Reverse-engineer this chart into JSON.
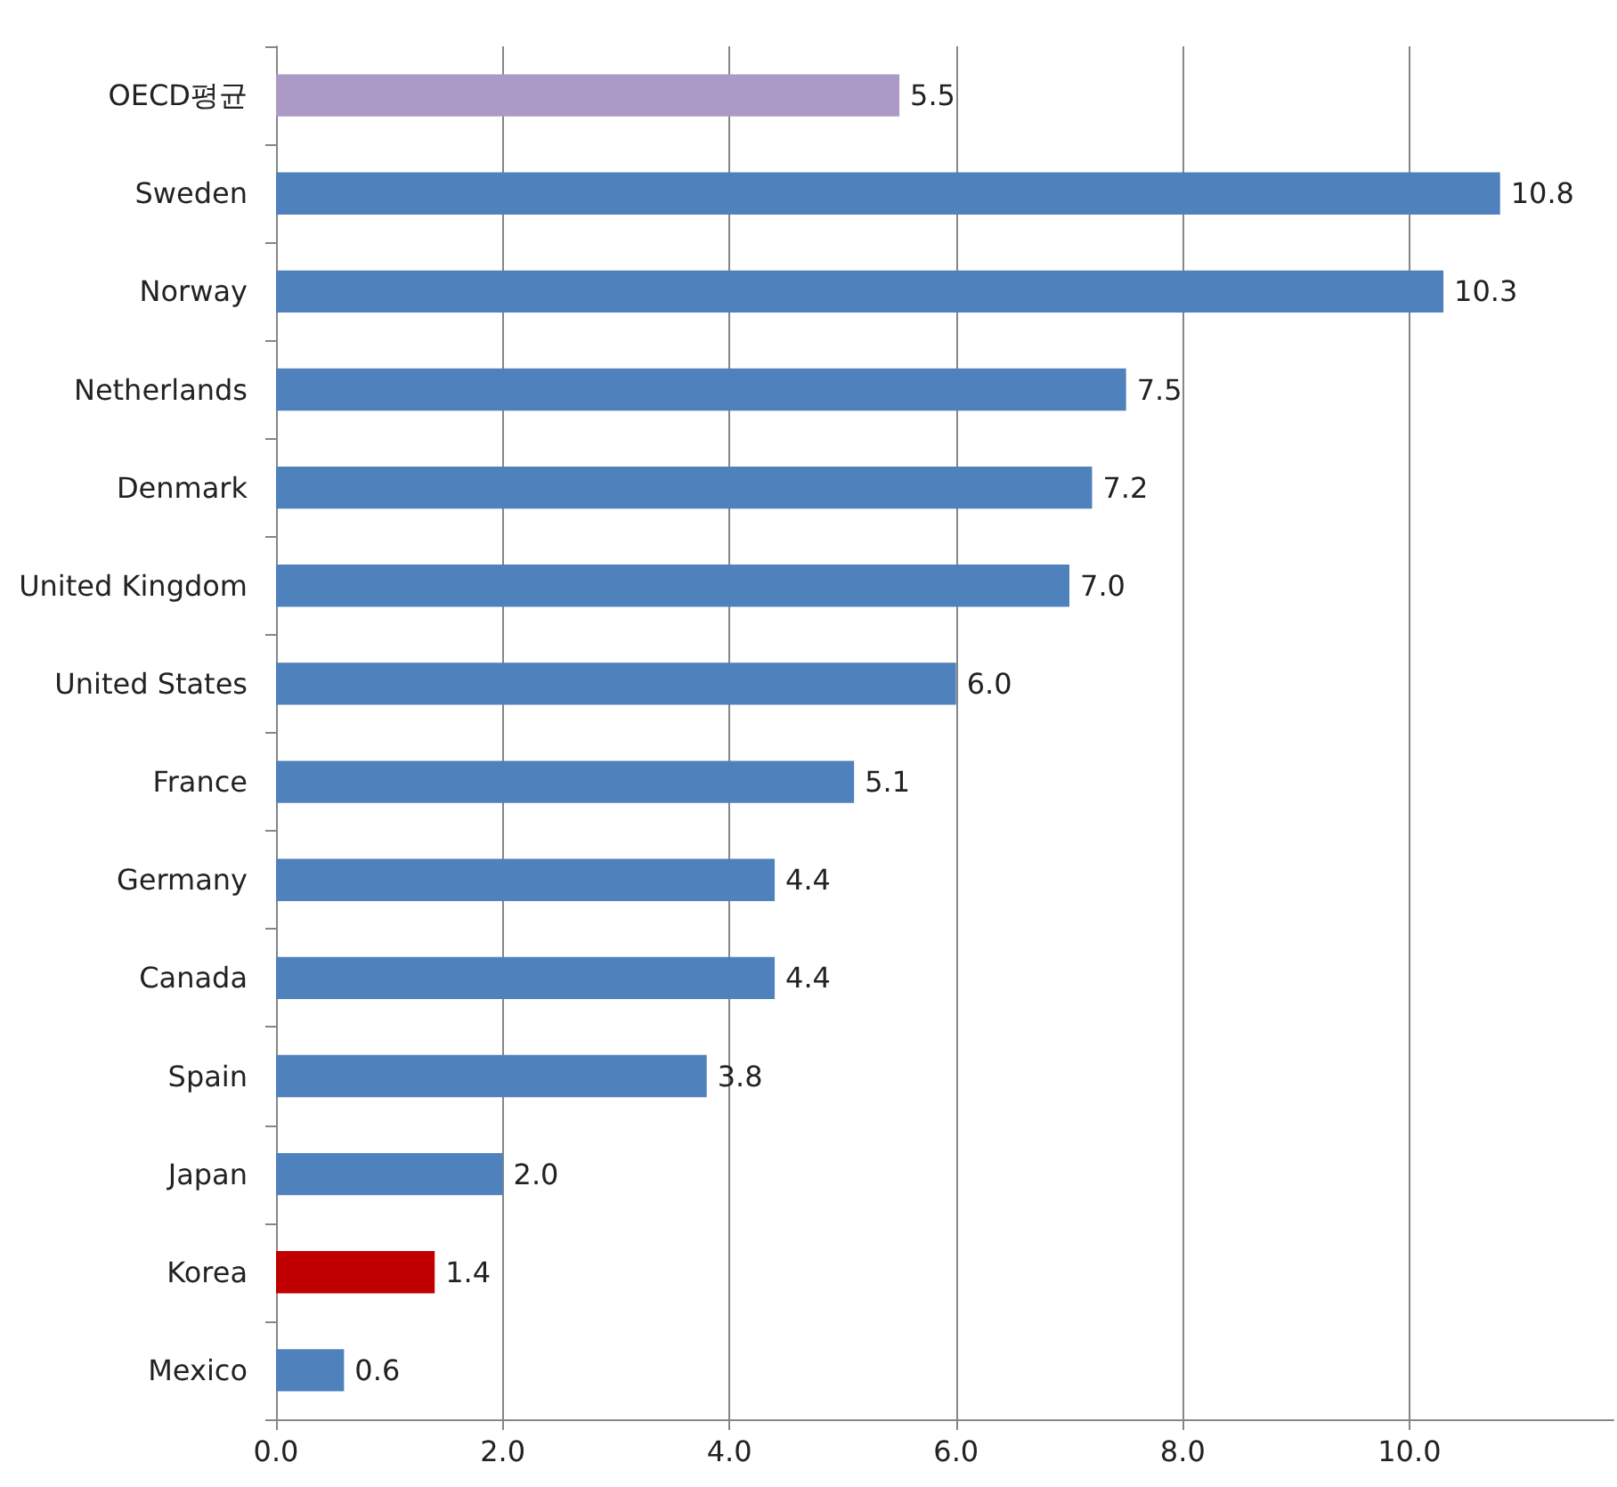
{
  "chart_data": {
    "type": "bar",
    "orientation": "horizontal",
    "categories": [
      "OECD평균",
      "Sweden",
      "Norway",
      "Netherlands",
      "Denmark",
      "United Kingdom",
      "United States",
      "France",
      "Germany",
      "Canada",
      "Spain",
      "Japan",
      "Korea",
      "Mexico"
    ],
    "values": [
      5.5,
      10.8,
      10.3,
      7.5,
      7.2,
      7.0,
      6.0,
      5.1,
      4.4,
      4.4,
      3.8,
      2.0,
      1.4,
      0.6
    ],
    "colors": [
      "#ab9ac5",
      "#4f81bd",
      "#4f81bd",
      "#4f81bd",
      "#4f81bd",
      "#4f81bd",
      "#4f81bd",
      "#4f81bd",
      "#4f81bd",
      "#4f81bd",
      "#4f81bd",
      "#4f81bd",
      "#c00000",
      "#4f81bd"
    ],
    "value_labels": [
      "5.5",
      "10.8",
      "10.3",
      "7.5",
      "7.2",
      "7.0",
      "6.0",
      "5.1",
      "4.4",
      "4.4",
      "3.8",
      "2.0",
      "1.4",
      "0.6"
    ],
    "xlim": [
      0,
      11.8
    ],
    "xticks": [
      {
        "value": 0,
        "label": "0.0"
      },
      {
        "value": 2,
        "label": "2.0"
      },
      {
        "value": 4,
        "label": "4.0"
      },
      {
        "value": 6,
        "label": "6.0"
      },
      {
        "value": 8,
        "label": "8.0"
      },
      {
        "value": 10,
        "label": "10.0"
      }
    ],
    "grid": "x"
  }
}
